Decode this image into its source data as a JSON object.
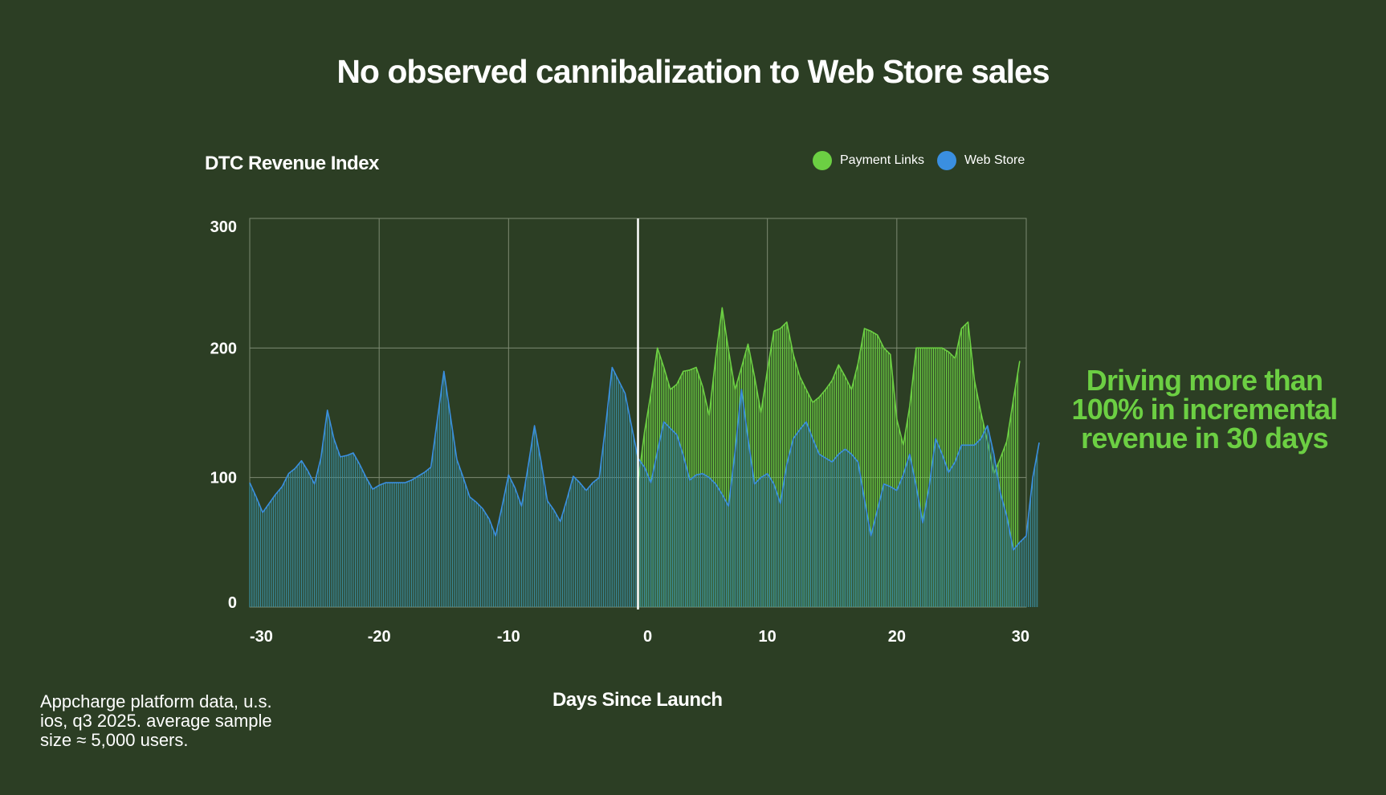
{
  "page": {
    "title": "No observed cannibalization to Web Store sales",
    "callout": "Driving more than 100% in incremental revenue in 30 days",
    "footnote": "Appcharge platform data, u.s. ios, q3 2025. average sample size ≈ 5,000 users."
  },
  "colors": {
    "background": "#2c3e24",
    "payment_links": "#6ccf43",
    "web_store": "#3a8fe0",
    "web_store_fill": "#3a8a9a",
    "grid": "#7d8a72"
  },
  "chart_data": {
    "type": "area",
    "ylabel": "DTC Revenue Index",
    "xlabel": "Days Since Launch",
    "xlim": [
      -30,
      30
    ],
    "ylim": [
      0,
      300
    ],
    "x_ticks": [
      -30,
      -20,
      -10,
      0,
      10,
      20,
      30
    ],
    "y_ticks": [
      0,
      100,
      200,
      300
    ],
    "grid": true,
    "legend": "top-right",
    "launch_marker": 0,
    "x_step": 0.5,
    "series": [
      {
        "name": "Payment Links",
        "color": "#6ccf43",
        "x_start": 0,
        "values": [
          96,
          135,
          165,
          200,
          185,
          168,
          172,
          182,
          183,
          185,
          170,
          148,
          192,
          231,
          198,
          168,
          185,
          203,
          178,
          150,
          183,
          213,
          215,
          220,
          195,
          178,
          168,
          158,
          162,
          168,
          175,
          187,
          178,
          168,
          188,
          215,
          213,
          210,
          200,
          195,
          145,
          125,
          155,
          200,
          200,
          200,
          200,
          200,
          197,
          192,
          215,
          220,
          175,
          150,
          128,
          103,
          115,
          128,
          160,
          190
        ]
      },
      {
        "name": "Web Store",
        "color": "#3a8fe0",
        "x_start": -30,
        "values": [
          96,
          85,
          73,
          80,
          87,
          93,
          103,
          107,
          113,
          105,
          95,
          115,
          152,
          130,
          116,
          117,
          119,
          110,
          100,
          91,
          94,
          96,
          96,
          96,
          96,
          98,
          101,
          104,
          108,
          145,
          182,
          148,
          114,
          100,
          85,
          81,
          76,
          68,
          55,
          78,
          102,
          92,
          78,
          108,
          140,
          113,
          82,
          75,
          66,
          83,
          101,
          96,
          90,
          96,
          100,
          140,
          185,
          175,
          165,
          140,
          115,
          108,
          96,
          120,
          143,
          138,
          133,
          117,
          98,
          102,
          103,
          100,
          95,
          87,
          78,
          120,
          168,
          130,
          95,
          100,
          103,
          95,
          80,
          110,
          130,
          137,
          143,
          130,
          118,
          115,
          112,
          118,
          122,
          118,
          112,
          83,
          55,
          75,
          95,
          93,
          90,
          102,
          118,
          93,
          65,
          93,
          130,
          118,
          104,
          112,
          125,
          125,
          125,
          130,
          140,
          118,
          88,
          70,
          44,
          50,
          55,
          100,
          127
        ]
      }
    ]
  }
}
